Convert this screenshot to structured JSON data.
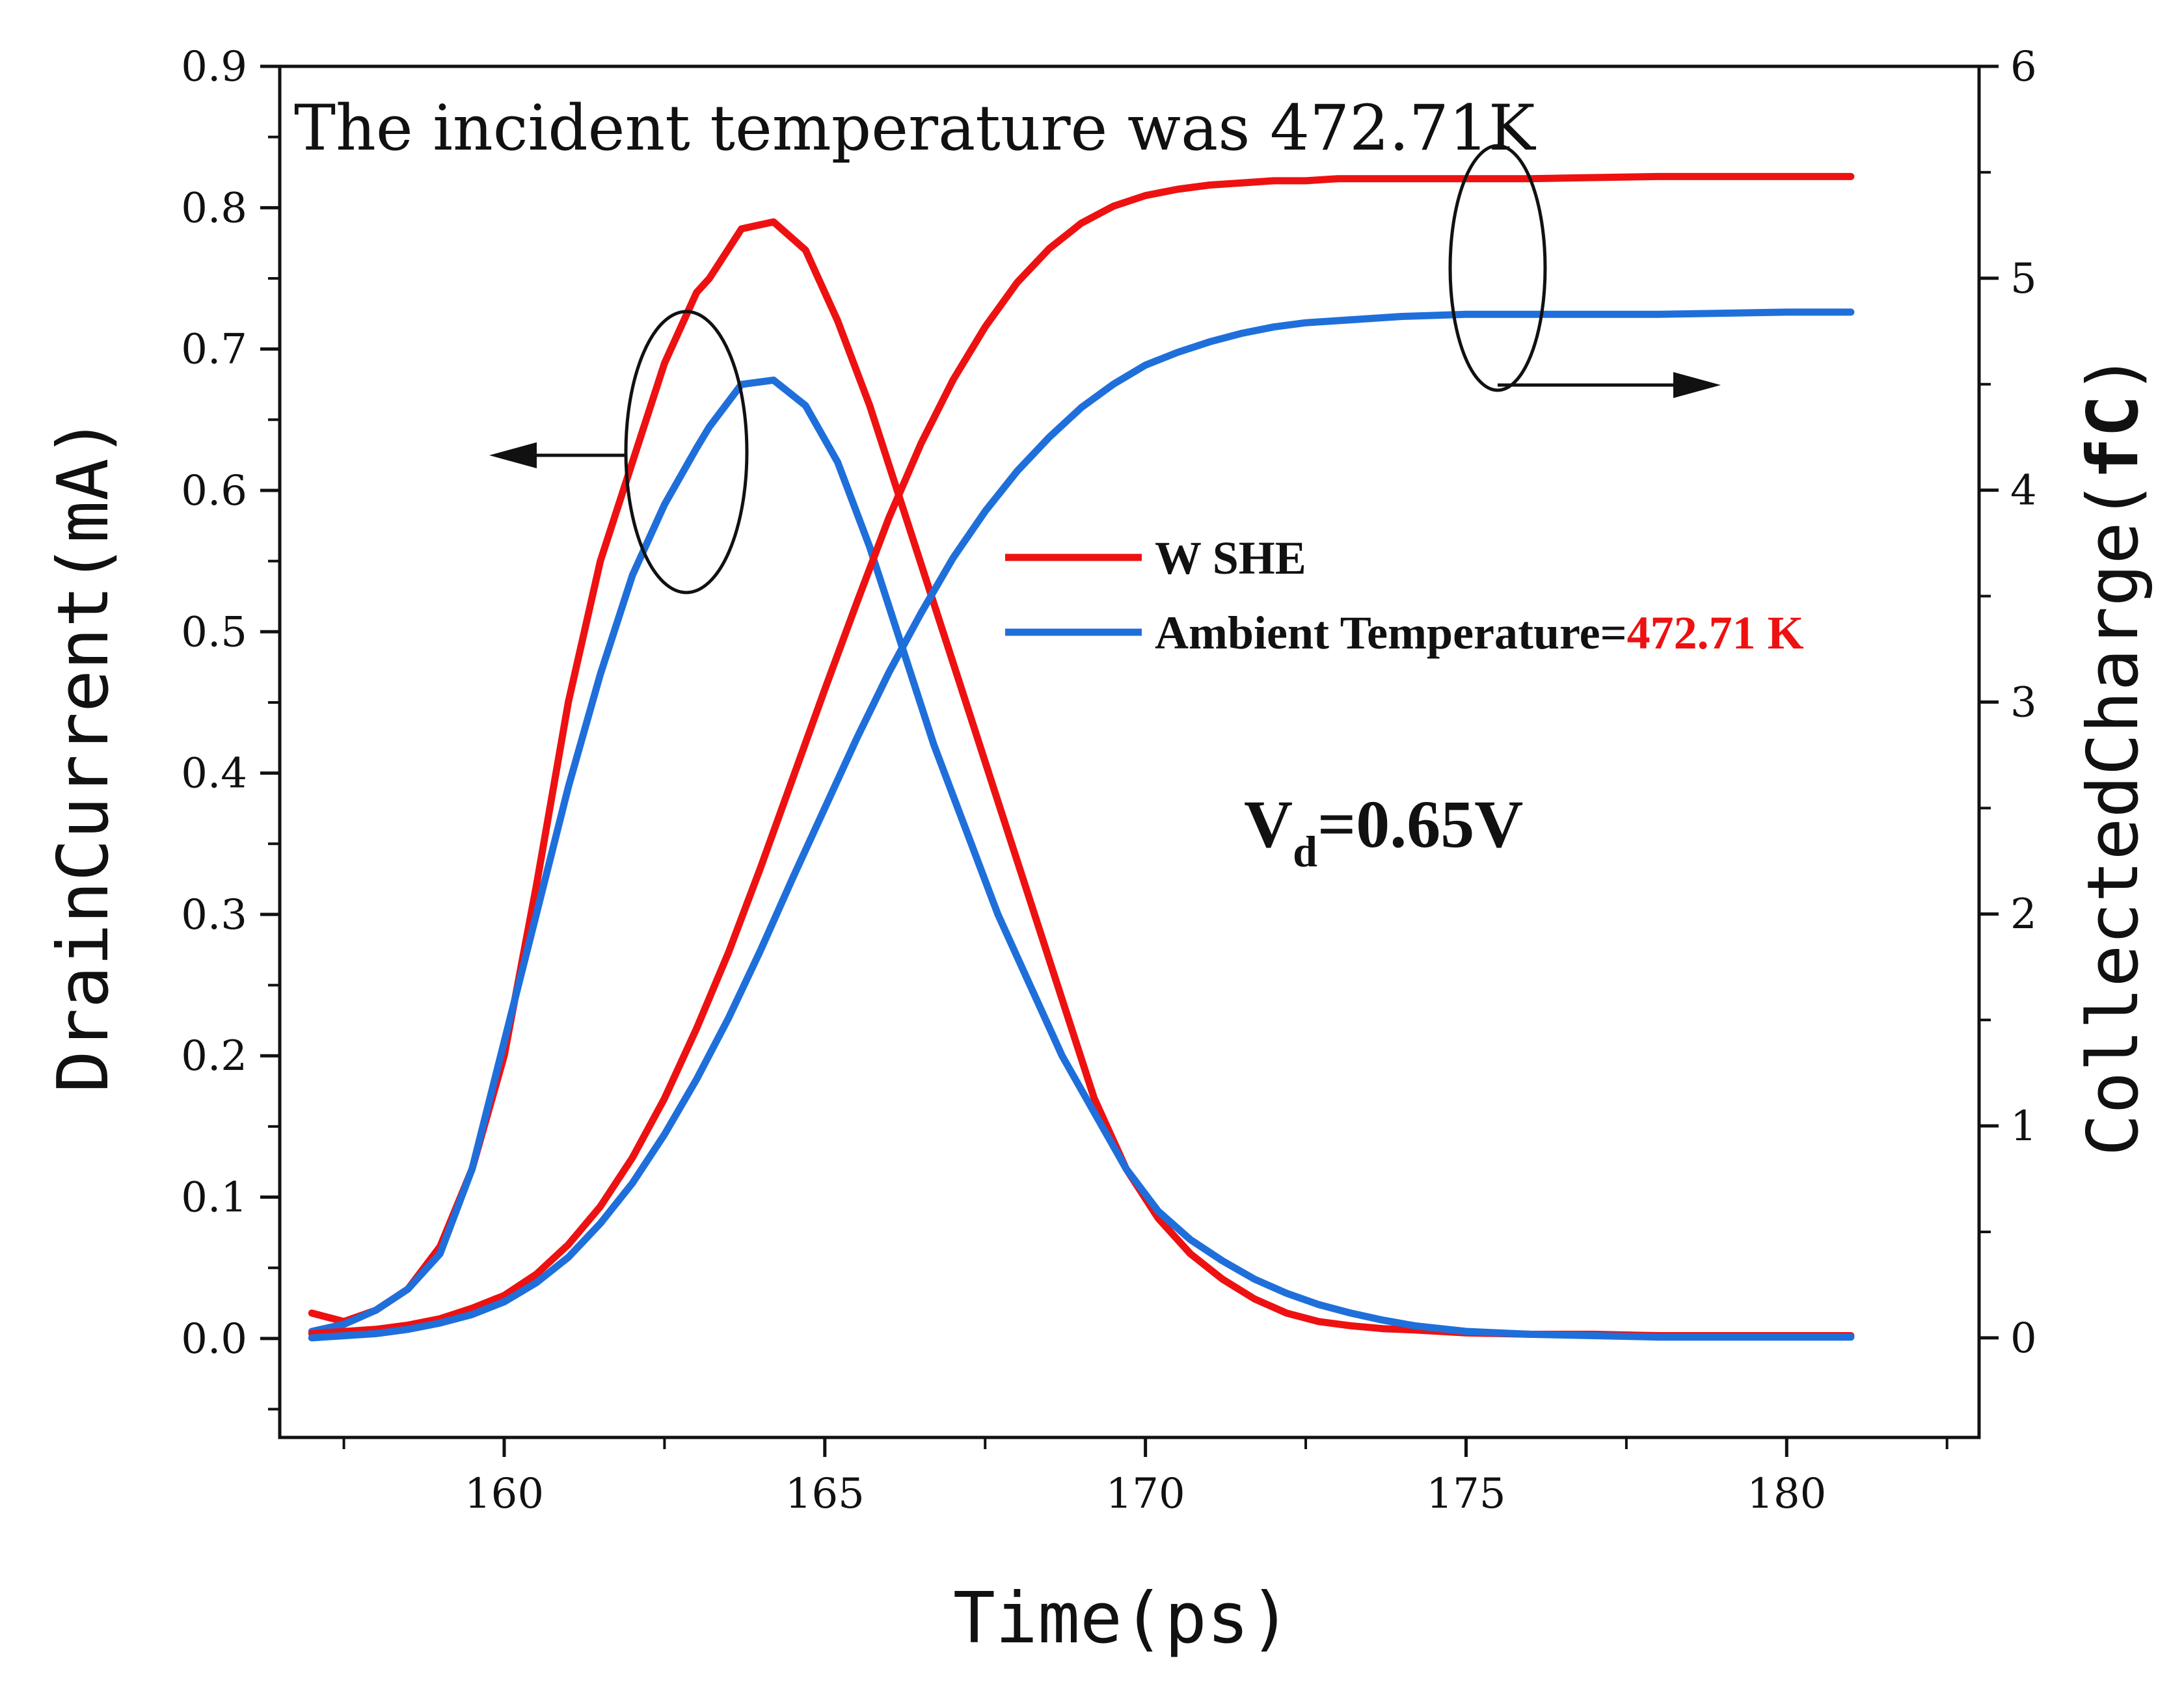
{
  "chart_data": {
    "type": "line",
    "annotation": "The incident temperature was 472.71K",
    "xlabel": "Time(ps)",
    "ylabel_left": "DrainCurrent(mA)",
    "ylabel_right": {
      "prefix": "CollectedCharge(",
      "bold": "fC",
      "suffix": ")"
    },
    "xlim": [
      156.5,
      183
    ],
    "ylim_left": [
      -0.07,
      0.9
    ],
    "ylim_right": [
      -0.47,
      6
    ],
    "x_ticks": [
      160,
      165,
      170,
      175,
      180
    ],
    "x_tick_labels": [
      "160",
      "165",
      "170",
      "175",
      "180"
    ],
    "y_left_ticks": [
      0.0,
      0.1,
      0.2,
      0.3,
      0.4,
      0.5,
      0.6,
      0.7,
      0.8,
      0.9
    ],
    "y_left_tick_labels": [
      "0.0",
      "0.1",
      "0.2",
      "0.3",
      "0.4",
      "0.5",
      "0.6",
      "0.7",
      "0.8",
      "0.9"
    ],
    "y_right_ticks": [
      0,
      1,
      2,
      3,
      4,
      5,
      6
    ],
    "y_right_tick_labels": [
      "0",
      "1",
      "2",
      "3",
      "4",
      "5",
      "6"
    ],
    "vd_label": {
      "main": "V",
      "sub": "d",
      "rest": "=0.65V"
    },
    "legend": [
      {
        "label": "W SHE",
        "color": "#ee1111",
        "highlight": ""
      },
      {
        "label": "Ambient Temperature=",
        "color": "#1f6fdb",
        "highlight": "472.71 K",
        "highlight_color": "#ee1111"
      }
    ],
    "series": [
      {
        "name": "W SHE drain current",
        "axis": "left",
        "color": "#ee1111",
        "x": [
          157,
          157.5,
          158,
          158.5,
          159,
          159.5,
          160,
          160.5,
          161,
          161.5,
          162,
          162.5,
          163,
          163.2,
          163.7,
          164.2,
          164.7,
          165.2,
          165.7,
          166.2,
          166.7,
          167.2,
          167.7,
          168.2,
          168.7,
          169.2,
          169.7,
          170.2,
          170.7,
          171.2,
          171.7,
          172.2,
          172.7,
          173.2,
          173.7,
          174.2,
          175,
          176,
          177,
          178,
          180,
          181
        ],
        "y": [
          0.018,
          0.012,
          0.02,
          0.035,
          0.065,
          0.12,
          0.2,
          0.32,
          0.45,
          0.55,
          0.62,
          0.69,
          0.74,
          0.75,
          0.785,
          0.79,
          0.77,
          0.72,
          0.66,
          0.59,
          0.52,
          0.45,
          0.38,
          0.31,
          0.24,
          0.17,
          0.12,
          0.085,
          0.06,
          0.042,
          0.028,
          0.018,
          0.012,
          0.009,
          0.007,
          0.006,
          0.004,
          0.003,
          0.003,
          0.002,
          0.002,
          0.002
        ]
      },
      {
        "name": "Ambient drain current",
        "axis": "left",
        "color": "#1f6fdb",
        "x": [
          157,
          157.5,
          158,
          158.5,
          159,
          159.5,
          160,
          160.5,
          161,
          161.5,
          162,
          162.5,
          163,
          163.2,
          163.7,
          164.2,
          164.7,
          165.2,
          165.7,
          166.2,
          166.7,
          167.2,
          167.7,
          168.2,
          168.7,
          169.2,
          169.7,
          170.2,
          170.7,
          171.2,
          171.7,
          172.2,
          172.7,
          173.2,
          173.7,
          174.2,
          175,
          176,
          177,
          178,
          180,
          181
        ],
        "y": [
          0.005,
          0.01,
          0.02,
          0.035,
          0.06,
          0.12,
          0.21,
          0.3,
          0.39,
          0.47,
          0.54,
          0.59,
          0.63,
          0.645,
          0.675,
          0.678,
          0.66,
          0.62,
          0.56,
          0.49,
          0.42,
          0.36,
          0.3,
          0.25,
          0.2,
          0.16,
          0.12,
          0.09,
          0.07,
          0.055,
          0.042,
          0.032,
          0.024,
          0.018,
          0.013,
          0.009,
          0.005,
          0.003,
          0.002,
          0.001,
          0.001,
          0.001
        ]
      },
      {
        "name": "W SHE collected charge",
        "axis": "right",
        "color": "#ee1111",
        "x": [
          157,
          157.5,
          158,
          158.5,
          159,
          159.5,
          160,
          160.5,
          161,
          161.5,
          162,
          162.5,
          163,
          163.5,
          164,
          164.5,
          165,
          165.5,
          166,
          166.5,
          167,
          167.5,
          168,
          168.5,
          169,
          169.5,
          170,
          170.5,
          171,
          171.5,
          172,
          172.5,
          173,
          174,
          175,
          176,
          178,
          180,
          181
        ],
        "y": [
          0.02,
          0.03,
          0.04,
          0.06,
          0.09,
          0.14,
          0.2,
          0.3,
          0.44,
          0.62,
          0.85,
          1.13,
          1.46,
          1.82,
          2.22,
          2.64,
          3.06,
          3.47,
          3.87,
          4.22,
          4.52,
          4.77,
          4.98,
          5.14,
          5.26,
          5.34,
          5.39,
          5.42,
          5.44,
          5.45,
          5.46,
          5.46,
          5.47,
          5.47,
          5.47,
          5.47,
          5.48,
          5.48,
          5.48
        ]
      },
      {
        "name": "Ambient collected charge",
        "axis": "right",
        "color": "#1f6fdb",
        "x": [
          157,
          157.5,
          158,
          158.5,
          159,
          159.5,
          160,
          160.5,
          161,
          161.5,
          162,
          162.5,
          163,
          163.5,
          164,
          164.5,
          165,
          165.5,
          166,
          166.5,
          167,
          167.5,
          168,
          168.5,
          169,
          169.5,
          170,
          170.5,
          171,
          171.5,
          172,
          172.5,
          173,
          174,
          175,
          176,
          178,
          180,
          181
        ],
        "y": [
          0.0,
          0.01,
          0.02,
          0.04,
          0.07,
          0.11,
          0.17,
          0.26,
          0.38,
          0.54,
          0.73,
          0.96,
          1.22,
          1.51,
          1.83,
          2.17,
          2.5,
          2.83,
          3.14,
          3.42,
          3.68,
          3.9,
          4.09,
          4.25,
          4.39,
          4.5,
          4.59,
          4.65,
          4.7,
          4.74,
          4.77,
          4.79,
          4.8,
          4.82,
          4.83,
          4.83,
          4.83,
          4.84,
          4.84
        ]
      }
    ]
  }
}
